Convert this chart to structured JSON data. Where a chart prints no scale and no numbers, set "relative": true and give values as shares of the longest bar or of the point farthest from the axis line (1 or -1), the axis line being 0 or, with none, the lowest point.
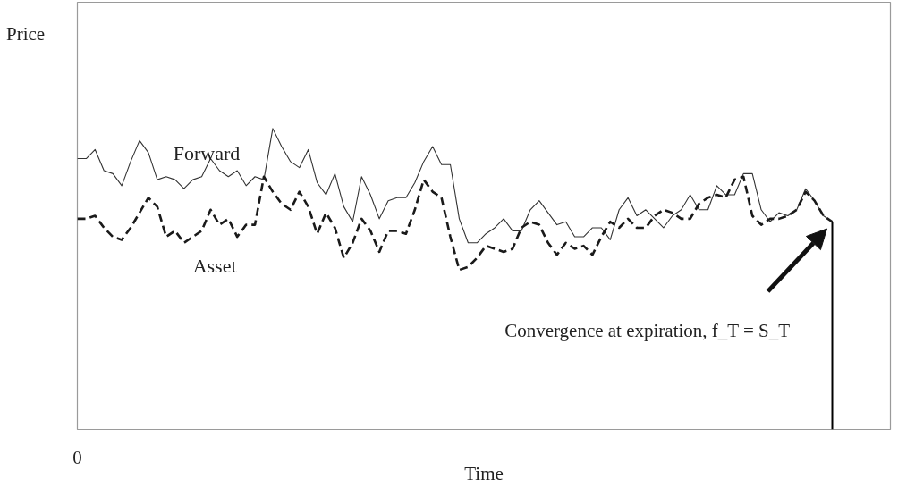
{
  "chart_data": {
    "type": "line",
    "relative": true,
    "ylabel": "Price",
    "xlabel": "Time",
    "categories": [
      null,
      null,
      null,
      null,
      null,
      null,
      null,
      null,
      null,
      null,
      null,
      null,
      null,
      null,
      null,
      null,
      null,
      null,
      null,
      null,
      null,
      null,
      null,
      null,
      null,
      null,
      null,
      null,
      null,
      null,
      null,
      null,
      null,
      null,
      null,
      null,
      null,
      null,
      null,
      null,
      null,
      null,
      null,
      null,
      null,
      null,
      null,
      null,
      null,
      null,
      null,
      null,
      null,
      null,
      null,
      null,
      null,
      null,
      null,
      null,
      null,
      null,
      null,
      null,
      null,
      null,
      null,
      null,
      null,
      null,
      null,
      null,
      null,
      null,
      null,
      null,
      null,
      null,
      null,
      null,
      null,
      null,
      null,
      null,
      null,
      null
    ],
    "grid": false,
    "marker": "none",
    "series": [
      {
        "name": "Forward",
        "color": "#333333",
        "line_style": "solid",
        "values": [
          0.9,
          0.9,
          0.93,
          0.86,
          0.85,
          0.81,
          0.89,
          0.96,
          0.92,
          0.83,
          0.84,
          0.83,
          0.8,
          0.83,
          0.84,
          0.9,
          0.86,
          0.84,
          0.86,
          0.81,
          0.84,
          0.83,
          1.0,
          0.94,
          0.89,
          0.87,
          0.93,
          0.82,
          0.78,
          0.85,
          0.74,
          0.69,
          0.84,
          0.78,
          0.7,
          0.76,
          0.77,
          0.77,
          0.82,
          0.89,
          0.94,
          0.88,
          0.88,
          0.7,
          0.62,
          0.62,
          0.65,
          0.67,
          0.7,
          0.66,
          0.66,
          0.73,
          0.76,
          0.72,
          0.68,
          0.69,
          0.64,
          0.64,
          0.67,
          0.67,
          0.63,
          0.73,
          0.77,
          0.71,
          0.73,
          0.7,
          0.67,
          0.71,
          0.73,
          0.78,
          0.73,
          0.73,
          0.81,
          0.78,
          0.78,
          0.85,
          0.85,
          0.73,
          0.69,
          0.72,
          0.71,
          0.73,
          0.8,
          0.76,
          0.71,
          0.69
        ]
      },
      {
        "name": "Asset",
        "color": "#1a1a1a",
        "line_style": "dashed",
        "values": [
          0.7,
          0.7,
          0.71,
          0.67,
          0.64,
          0.63,
          0.67,
          0.72,
          0.77,
          0.74,
          0.64,
          0.66,
          0.62,
          0.64,
          0.66,
          0.73,
          0.68,
          0.7,
          0.64,
          0.68,
          0.68,
          0.84,
          0.79,
          0.75,
          0.73,
          0.79,
          0.74,
          0.65,
          0.72,
          0.67,
          0.57,
          0.62,
          0.7,
          0.66,
          0.59,
          0.66,
          0.66,
          0.65,
          0.73,
          0.83,
          0.79,
          0.77,
          0.64,
          0.53,
          0.54,
          0.57,
          0.61,
          0.6,
          0.59,
          0.6,
          0.67,
          0.69,
          0.68,
          0.62,
          0.58,
          0.62,
          0.6,
          0.61,
          0.58,
          0.64,
          0.69,
          0.67,
          0.7,
          0.67,
          0.67,
          0.71,
          0.73,
          0.72,
          0.7,
          0.7,
          0.75,
          0.77,
          0.78,
          0.77,
          0.83,
          0.84,
          0.71,
          0.68,
          0.7,
          0.7,
          0.71,
          0.73,
          0.79,
          0.76,
          0.71,
          0.69
        ]
      }
    ],
    "annotations": [
      "0",
      "Convergence at expiration, f_T = S_T"
    ]
  }
}
